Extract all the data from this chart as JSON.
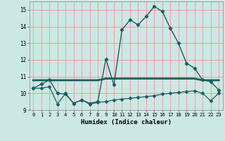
{
  "title": "",
  "xlabel": "Humidex (Indice chaleur)",
  "ylabel": "",
  "background_color": "#cce8e4",
  "grid_color": "#e8a0a0",
  "line_color": "#1a5f5f",
  "xlim": [
    -0.5,
    23.5
  ],
  "ylim": [
    9.0,
    15.5
  ],
  "yticks": [
    9,
    10,
    11,
    12,
    13,
    14,
    15
  ],
  "xticks": [
    0,
    1,
    2,
    3,
    4,
    5,
    6,
    7,
    8,
    9,
    10,
    11,
    12,
    13,
    14,
    15,
    16,
    17,
    18,
    19,
    20,
    21,
    22,
    23
  ],
  "series1_x": [
    0,
    1,
    2,
    3,
    4,
    5,
    6,
    7,
    8,
    9,
    10,
    11,
    12,
    13,
    14,
    15,
    16,
    17,
    18,
    19,
    20,
    21,
    22,
    23
  ],
  "series1_y": [
    10.3,
    10.55,
    10.8,
    10.0,
    9.95,
    9.4,
    9.6,
    9.4,
    9.5,
    12.05,
    10.5,
    13.8,
    14.4,
    14.1,
    14.6,
    15.2,
    14.9,
    13.9,
    13.0,
    11.8,
    11.5,
    10.8,
    10.7,
    10.2
  ],
  "series2_x": [
    0,
    1,
    2,
    3,
    4,
    5,
    6,
    7,
    8,
    9,
    10,
    11,
    12,
    13,
    14,
    15,
    16,
    17,
    18,
    19,
    20,
    21,
    22,
    23
  ],
  "series2_y": [
    10.78,
    10.78,
    10.78,
    10.78,
    10.78,
    10.78,
    10.78,
    10.78,
    10.78,
    10.88,
    10.88,
    10.88,
    10.88,
    10.88,
    10.88,
    10.88,
    10.88,
    10.88,
    10.88,
    10.88,
    10.88,
    10.78,
    10.78,
    10.78
  ],
  "series3_x": [
    0,
    1,
    2,
    3,
    4,
    5,
    6,
    7,
    8,
    9,
    10,
    11,
    12,
    13,
    14,
    15,
    16,
    17,
    18,
    19,
    20,
    21,
    22,
    23
  ],
  "series3_y": [
    10.3,
    10.3,
    10.4,
    9.35,
    10.0,
    9.4,
    9.6,
    9.35,
    9.45,
    9.5,
    9.6,
    9.65,
    9.7,
    9.75,
    9.8,
    9.85,
    9.95,
    10.0,
    10.05,
    10.1,
    10.15,
    10.0,
    9.55,
    10.0
  ]
}
